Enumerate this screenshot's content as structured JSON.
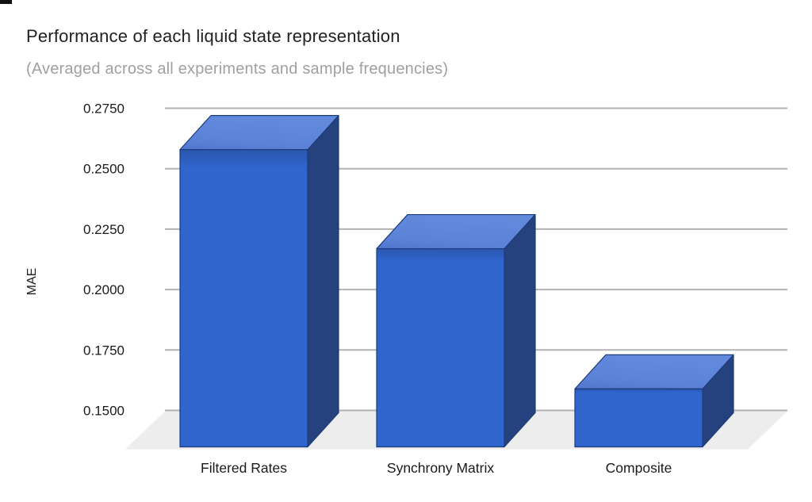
{
  "chart_data": {
    "type": "bar",
    "variant": "3d-column",
    "title": "Performance of each liquid state representation",
    "subtitle": "(Averaged across all experiments and sample frequencies)",
    "categories": [
      "Filtered Rates",
      "Synchrony Matrix",
      "Composite"
    ],
    "values": [
      0.273,
      0.232,
      0.174
    ],
    "xlabel": "",
    "ylabel": "MAE",
    "ylim": [
      0.15,
      0.275
    ],
    "ytick_step": 0.025,
    "yticks": [
      "0.2750",
      "0.2500",
      "0.2250",
      "0.2000",
      "0.1750",
      "0.1500"
    ],
    "grid": true,
    "legend": "none"
  },
  "colors": {
    "background": "#ffffff",
    "title": "#212121",
    "subtitle": "#a0a0a0",
    "tick_label": "#1a1a1a",
    "category_label": "#1a1a1a",
    "gridline": "#b2b2b2",
    "floor": "#ededed",
    "bar_front": "#2f65cc",
    "bar_front_crease": "#2a57ae",
    "bar_top": "#5b82d7",
    "bar_top_light": "#6189dc",
    "bar_top_dark": "#4f76cd",
    "bar_side": "#25427e",
    "bar_edge": "#1e3c77"
  }
}
